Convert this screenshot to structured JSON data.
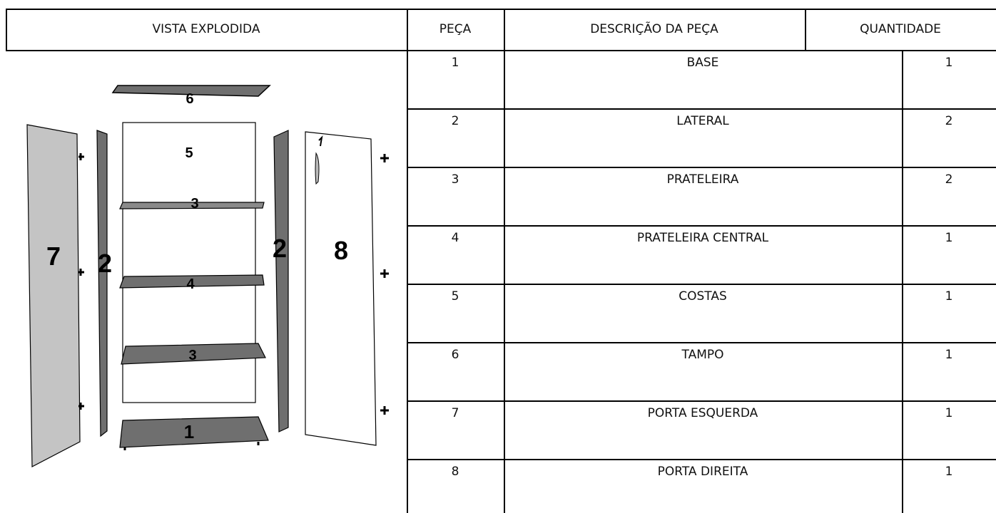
{
  "table": {
    "header": [
      "VISTA EXPLODIDA",
      "PEÇA",
      "DESCRIÇÃO DA PEÇA",
      "QUANTIDADE"
    ],
    "rows": [
      [
        "1",
        "BASE",
        "1"
      ],
      [
        "2",
        "LATERAL",
        "2"
      ],
      [
        "3",
        "PRATELEIRA",
        "2"
      ],
      [
        "4",
        "PRATELEIRA CENTRAL",
        "1"
      ],
      [
        "5",
        "COSTAS",
        "1"
      ],
      [
        "6",
        "TAMPO",
        "1"
      ],
      [
        "7",
        "PORTA ESQUERDA",
        "1"
      ],
      [
        "8",
        "PORTA DIREITA",
        "1"
      ]
    ]
  },
  "diagram": {
    "labels": [
      "6",
      "5",
      "3",
      "7",
      "2",
      "2",
      "8",
      "4",
      "3",
      "1"
    ]
  }
}
